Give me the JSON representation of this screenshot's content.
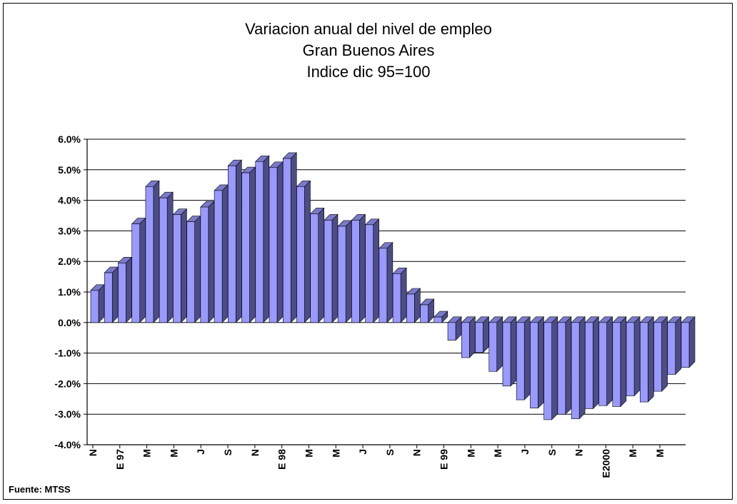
{
  "titles": [
    "Variacion anual del nivel de empleo",
    "Gran Buenos Aires",
    "Indice dic 95=100"
  ],
  "source": "Fuente: MTSS",
  "colors": {
    "front": "#9999ff",
    "side": "#4d4d85",
    "top": "#7a7acc",
    "grid": "#000000"
  },
  "chart_data": {
    "type": "bar",
    "title": "Variacion anual del nivel de empleo",
    "subtitle": "Gran Buenos Aires / Indice dic 95=100",
    "xlabel": "",
    "ylabel": "",
    "ylim": [
      -0.04,
      0.06
    ],
    "y_ticks": [
      "6.0%",
      "5.0%",
      "4.0%",
      "3.0%",
      "2.0%",
      "1.0%",
      "0.0%",
      "-1.0%",
      "-2.0%",
      "-3.0%",
      "-4.0%"
    ],
    "y_tick_values": [
      0.06,
      0.05,
      0.04,
      0.03,
      0.02,
      0.01,
      0.0,
      -0.01,
      -0.02,
      -0.03,
      -0.04
    ],
    "x_tick_labels": [
      "N",
      "E 97",
      "M",
      "M",
      "J",
      "S",
      "N",
      "E 98",
      "M",
      "M",
      "J",
      "S",
      "N",
      "E 99",
      "M",
      "M",
      "J",
      "S",
      "N",
      "E2000",
      "M",
      "M"
    ],
    "grid": true,
    "style": "3d",
    "values": [
      0.0105,
      0.0163,
      0.0195,
      0.0323,
      0.0445,
      0.0408,
      0.0353,
      0.033,
      0.0378,
      0.0432,
      0.0513,
      0.049,
      0.0527,
      0.0507,
      0.0537,
      0.0445,
      0.0356,
      0.0335,
      0.0315,
      0.0335,
      0.032,
      0.0243,
      0.016,
      0.0093,
      0.0058,
      0.0018,
      -0.0058,
      -0.0115,
      -0.0098,
      -0.016,
      -0.0208,
      -0.0253,
      -0.028,
      -0.0318,
      -0.03,
      -0.0315,
      -0.0282,
      -0.0272,
      -0.0275,
      -0.024,
      -0.026,
      -0.0225,
      -0.017,
      -0.0147
    ]
  }
}
